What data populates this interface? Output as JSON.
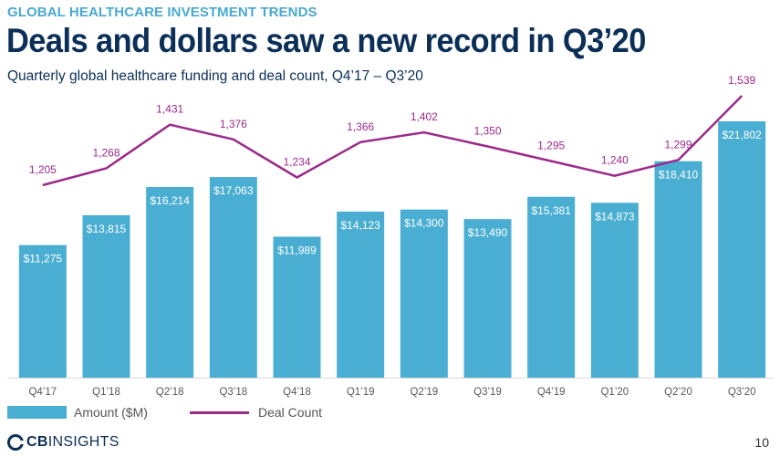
{
  "header": {
    "eyebrow": "GLOBAL HEALTHCARE INVESTMENT TRENDS",
    "title": "Deals and dollars saw a new record in Q3’20",
    "subtitle": "Quarterly global healthcare funding and deal count, Q4’17 – Q3’20"
  },
  "colors": {
    "bar": "#4aaed3",
    "line": "#9b2a8a",
    "title": "#0b2f57",
    "eyebrow": "#4aa8d0"
  },
  "chart_data": {
    "type": "bar",
    "title": "Quarterly global healthcare funding and deal count, Q4’17 – Q3’20",
    "xlabel": "",
    "ylabel": "",
    "categories": [
      "Q4’17",
      "Q1’18",
      "Q2’18",
      "Q3’18",
      "Q4’18",
      "Q1’19",
      "Q2’19",
      "Q3’19",
      "Q4’19",
      "Q1’20",
      "Q2’20",
      "Q3’20"
    ],
    "series": [
      {
        "name": "Amount ($M)",
        "type": "bar",
        "values": [
          11275,
          13815,
          16214,
          17063,
          11989,
          14123,
          14300,
          13490,
          15381,
          14873,
          18410,
          21802
        ],
        "labels": [
          "$11,275",
          "$13,815",
          "$16,214",
          "$17,063",
          "$11,989",
          "$14,123",
          "$14,300",
          "$13,490",
          "$15,381",
          "$14,873",
          "$18,410",
          "$21,802"
        ]
      },
      {
        "name": "Deal Count",
        "type": "line",
        "values": [
          1205,
          1268,
          1431,
          1376,
          1234,
          1366,
          1402,
          1350,
          1295,
          1240,
          1299,
          1539
        ],
        "labels": [
          "1,205",
          "1,268",
          "1,431",
          "1,376",
          "1,234",
          "1,366",
          "1,402",
          "1,350",
          "1,295",
          "1,240",
          "1,299",
          "1,539"
        ]
      }
    ],
    "grid": false,
    "legend": "bottom-left"
  },
  "legend": {
    "bar_label": "Amount ($M)",
    "line_label": "Deal Count"
  },
  "footer": {
    "logo_cb": "CB",
    "logo_insights": "INSIGHTS",
    "page_number": "10"
  }
}
